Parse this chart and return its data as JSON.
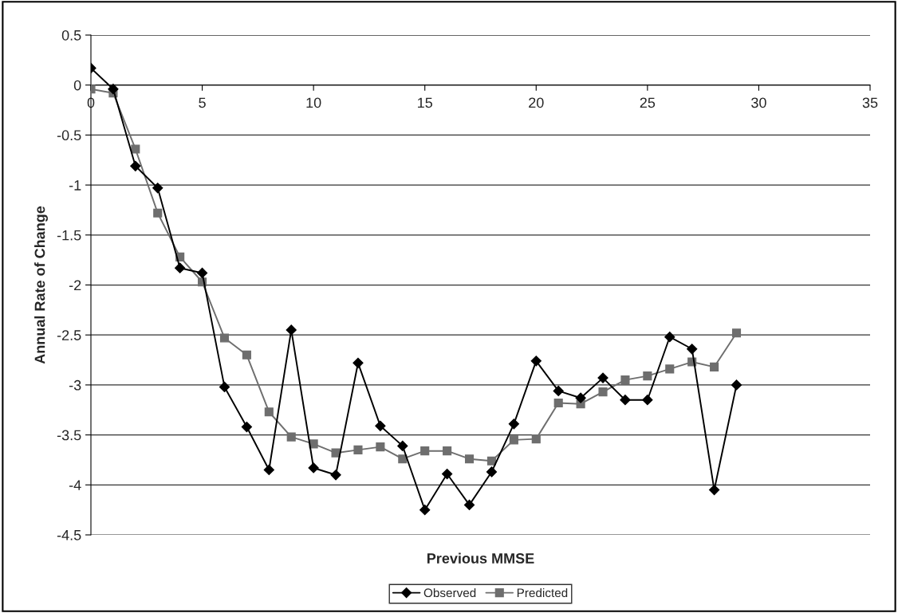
{
  "chart_data": {
    "type": "line",
    "xlabel": "Previous MMSE",
    "ylabel": "Annual Rate of Change",
    "x": [
      0,
      1,
      2,
      3,
      4,
      5,
      6,
      7,
      8,
      9,
      10,
      11,
      12,
      13,
      14,
      15,
      16,
      17,
      18,
      19,
      20,
      21,
      22,
      23,
      24,
      25,
      26,
      27,
      28,
      29
    ],
    "series": [
      {
        "name": "Observed",
        "color": "#000000",
        "marker": "diamond",
        "values": [
          0.17,
          -0.04,
          -0.81,
          -1.03,
          -1.83,
          -1.88,
          -3.02,
          -3.42,
          -3.85,
          -2.45,
          -3.83,
          -3.9,
          -2.78,
          -3.41,
          -3.61,
          -4.25,
          -3.89,
          -4.2,
          -3.87,
          -3.39,
          -2.76,
          -3.06,
          -3.13,
          -2.93,
          -3.15,
          -3.15,
          -2.52,
          -2.64,
          -4.05,
          -3.0
        ]
      },
      {
        "name": "Predicted",
        "color": "#6e6e6e",
        "marker": "square",
        "values": [
          -0.04,
          -0.08,
          -0.64,
          -1.28,
          -1.72,
          -1.97,
          -2.53,
          -2.7,
          -3.27,
          -3.52,
          -3.59,
          -3.68,
          -3.65,
          -3.62,
          -3.74,
          -3.66,
          -3.66,
          -3.74,
          -3.76,
          -3.55,
          -3.54,
          -3.18,
          -3.19,
          -3.07,
          -2.95,
          -2.91,
          -2.84,
          -2.77,
          -2.82,
          -2.48
        ]
      }
    ],
    "xlim": [
      0,
      35
    ],
    "xticks": [
      0,
      5,
      10,
      15,
      20,
      25,
      30,
      35
    ],
    "ylim": [
      -4.5,
      0.5
    ],
    "yticks": [
      {
        "value": 0.5,
        "label": "0.5"
      },
      0,
      {
        "value": -0.5,
        "label": "-0.5"
      },
      {
        "value": -1,
        "label": "-1"
      },
      {
        "value": -1.5,
        "label": "-1.5"
      },
      {
        "value": -2,
        "label": "-2"
      },
      {
        "value": -2.5,
        "label": "-2.5"
      },
      {
        "value": -3,
        "label": "-3"
      },
      {
        "value": -3.5,
        "label": "-3.5"
      },
      {
        "value": -4,
        "label": "-4"
      },
      {
        "value": -4.5,
        "label": "-4.5"
      }
    ],
    "grid": "y",
    "legend": "bottom",
    "line_style": "solid"
  }
}
